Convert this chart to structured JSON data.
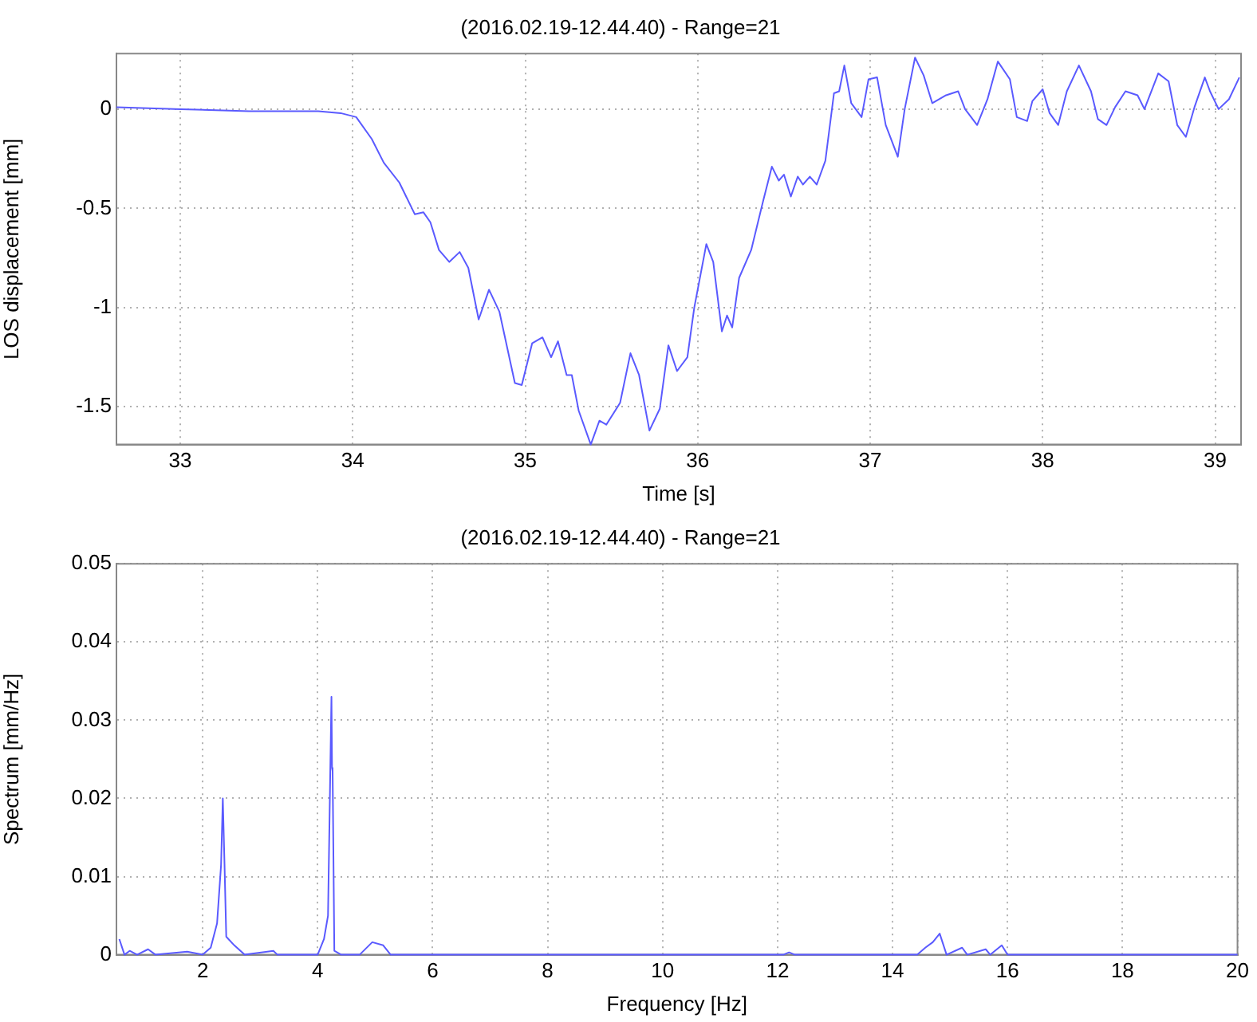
{
  "chart_data": [
    {
      "type": "line",
      "title": "(2016.02.19-12.44.40) - Range=21",
      "xlabel": "Time [s]",
      "ylabel": "LOS displacement [mm]",
      "xlim": [
        32.63,
        39.15
      ],
      "ylim": [
        -1.69,
        0.28
      ],
      "xticks": [
        33,
        34,
        35,
        36,
        37,
        38,
        39
      ],
      "yticks": [
        -1.5,
        -1,
        -0.5,
        0
      ],
      "grid": true,
      "legend": false,
      "marker": "none",
      "line_style": "solid",
      "series": [
        {
          "color": "#5a5aff",
          "x": [
            32.63,
            33.0,
            33.4,
            33.8,
            33.93,
            34.02,
            34.11,
            34.18,
            34.27,
            34.36,
            34.41,
            34.45,
            34.5,
            34.56,
            34.62,
            34.67,
            34.73,
            34.79,
            34.85,
            34.94,
            34.98,
            35.04,
            35.1,
            35.15,
            35.19,
            35.24,
            35.27,
            35.31,
            35.38,
            35.43,
            35.47,
            35.55,
            35.61,
            35.66,
            35.72,
            35.78,
            35.83,
            35.88,
            35.94,
            35.98,
            36.05,
            36.09,
            36.14,
            36.17,
            36.2,
            36.24,
            36.31,
            36.38,
            36.43,
            36.47,
            36.5,
            36.54,
            36.58,
            36.61,
            36.65,
            36.69,
            36.74,
            36.79,
            36.82,
            36.85,
            36.89,
            36.95,
            36.99,
            37.04,
            37.09,
            37.16,
            37.2,
            37.26,
            37.31,
            37.36,
            37.44,
            37.51,
            37.55,
            37.62,
            37.68,
            37.74,
            37.81,
            37.85,
            37.91,
            37.94,
            38.0,
            38.04,
            38.09,
            38.14,
            38.21,
            38.28,
            38.32,
            38.37,
            38.42,
            38.48,
            38.55,
            38.59,
            38.67,
            38.73,
            38.78,
            38.83,
            38.88,
            38.94,
            38.97,
            39.02,
            39.08,
            39.14
          ],
          "values": [
            0.01,
            0,
            -0.01,
            -0.01,
            -0.02,
            -0.04,
            -0.15,
            -0.27,
            -0.37,
            -0.53,
            -0.52,
            -0.57,
            -0.71,
            -0.77,
            -0.72,
            -0.8,
            -1.06,
            -0.91,
            -1.02,
            -1.38,
            -1.39,
            -1.18,
            -1.15,
            -1.25,
            -1.17,
            -1.34,
            -1.34,
            -1.52,
            -1.69,
            -1.57,
            -1.59,
            -1.48,
            -1.23,
            -1.34,
            -1.62,
            -1.51,
            -1.19,
            -1.32,
            -1.25,
            -1.0,
            -0.68,
            -0.77,
            -1.12,
            -1.04,
            -1.1,
            -0.85,
            -0.71,
            -0.46,
            -0.29,
            -0.36,
            -0.33,
            -0.44,
            -0.34,
            -0.38,
            -0.34,
            -0.38,
            -0.26,
            0.08,
            0.09,
            0.22,
            0.03,
            -0.04,
            0.15,
            0.16,
            -0.08,
            -0.24,
            0,
            0.26,
            0.17,
            0.03,
            0.07,
            0.09,
            0,
            -0.08,
            0.05,
            0.24,
            0.15,
            -0.04,
            -0.06,
            0.04,
            0.1,
            -0.02,
            -0.08,
            0.09,
            0.22,
            0.09,
            -0.05,
            -0.08,
            0.01,
            0.09,
            0.07,
            0,
            0.18,
            0.14,
            -0.08,
            -0.14,
            0.01,
            0.16,
            0.09,
            0,
            0.05,
            0.16
          ]
        }
      ]
    },
    {
      "type": "line",
      "title": "(2016.02.19-12.44.40) - Range=21",
      "xlabel": "Frequency [Hz]",
      "ylabel": "Spectrum [mm/Hz]",
      "xlim": [
        0.5,
        20
      ],
      "ylim": [
        0,
        0.05
      ],
      "xticks": [
        2,
        4,
        6,
        8,
        10,
        12,
        14,
        16,
        18,
        20
      ],
      "yticks": [
        0,
        0.01,
        0.02,
        0.03,
        0.04,
        0.05
      ],
      "grid": true,
      "legend": false,
      "marker": "none",
      "line_style": "solid",
      "series": [
        {
          "color": "#5a5aff",
          "x": [
            0.55,
            0.64,
            0.73,
            0.86,
            1.05,
            1.18,
            1.73,
            2.0,
            2.14,
            2.25,
            2.32,
            2.35,
            2.38,
            2.41,
            2.55,
            2.73,
            3.23,
            3.3,
            4.0,
            4.11,
            4.18,
            4.24,
            4.25,
            4.26,
            4.29,
            4.41,
            4.73,
            4.95,
            5.14,
            5.27,
            12.1,
            12.2,
            12.3,
            14.43,
            14.57,
            14.7,
            14.82,
            14.94,
            15.21,
            15.3,
            15.62,
            15.7,
            15.9,
            16.0,
            20.0
          ],
          "values": [
            0.002,
            0,
            0.0005,
            0,
            0.0007,
            0,
            0.0004,
            0,
            0.0009,
            0.004,
            0.0115,
            0.02,
            0.0115,
            0.0023,
            0.0012,
            0,
            0.0005,
            0,
            0,
            0.002,
            0.005,
            0.033,
            0.0239,
            0.0235,
            0.0005,
            0,
            0,
            0.0016,
            0.0012,
            0,
            0,
            0.0003,
            0,
            0,
            0.0009,
            0.0016,
            0.0027,
            0,
            0.0009,
            0,
            0.0007,
            0,
            0.0012,
            0,
            0
          ]
        }
      ]
    }
  ]
}
